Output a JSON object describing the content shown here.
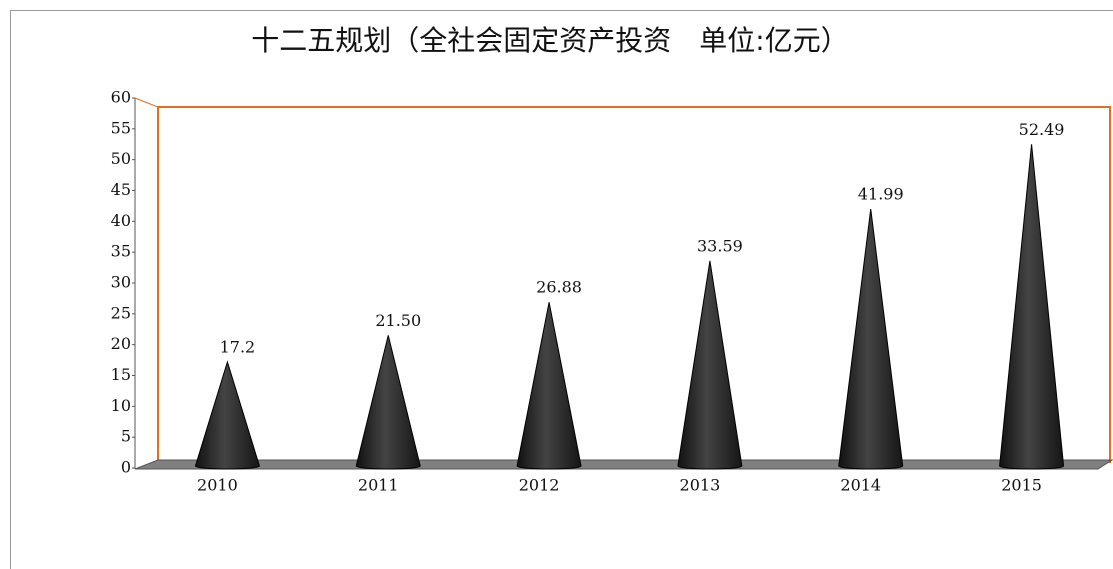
{
  "chart_data": {
    "type": "cone",
    "title": "十二五规划（全社会固定资产投资　单位:亿元）",
    "categories": [
      "2010",
      "2011",
      "2012",
      "2013",
      "2014",
      "2015"
    ],
    "values": [
      17.2,
      21.5,
      26.88,
      33.59,
      41.99,
      52.49
    ],
    "value_labels": [
      "17.2",
      "21.50",
      "26.88",
      "33.59",
      "41.99",
      "52.49"
    ],
    "color": "#2a2a2a",
    "ylim": [
      0,
      60
    ],
    "yticks": [
      0,
      5,
      10,
      15,
      20,
      25,
      30,
      35,
      40,
      45,
      50,
      55,
      60
    ]
  }
}
